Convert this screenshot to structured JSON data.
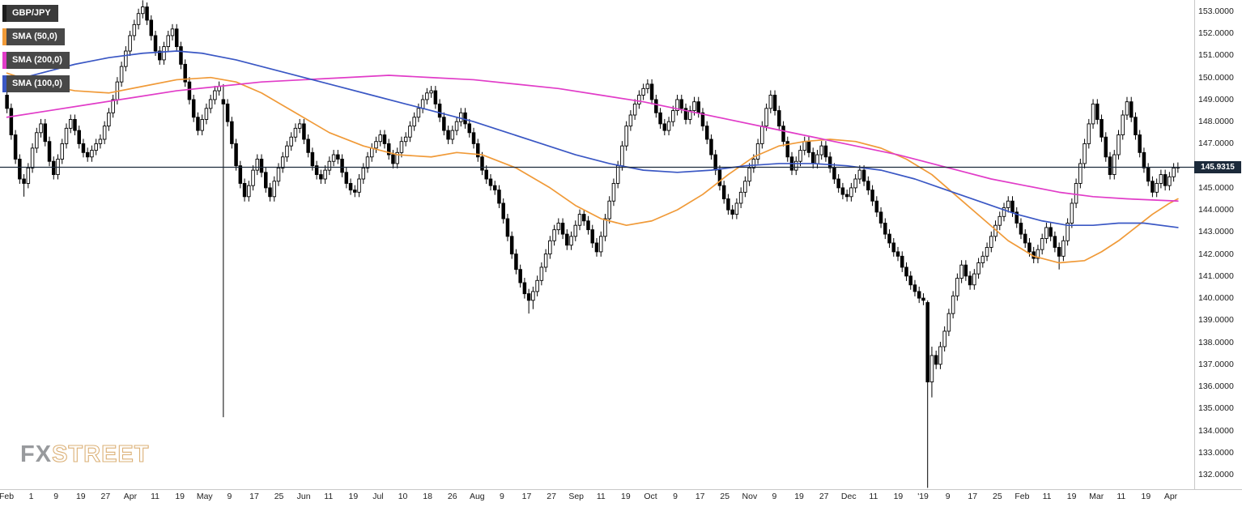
{
  "legend": {
    "symbol": "GBP/JPY",
    "sma50": "SMA (50,0)",
    "sma200": "SMA (200,0)",
    "sma100": "SMA (100,0)"
  },
  "colors": {
    "sma50": "#f09a38",
    "sma200": "#e13cc8",
    "sma100": "#3a57c4",
    "candle": "#000000",
    "price_line": "#1c2a3a",
    "badge_bg": "#1c2a3a",
    "axis_text": "#1a1a1a"
  },
  "watermark": {
    "fx": "FX",
    "street": "STREET"
  },
  "price_badge": "145.9315",
  "chart_data": {
    "type": "candlestick",
    "symbol": "GBP/JPY",
    "timeframe_note": "Feb 2018 - Apr 2019, daily candles",
    "grid": false,
    "legend_position": "top-left",
    "legend": [
      "GBP/JPY",
      "SMA (50,0)",
      "SMA (200,0)",
      "SMA (100,0)"
    ],
    "current_price": 145.9315,
    "y_axis": {
      "min": 132,
      "max": 153,
      "tick_step": 1,
      "labels": [
        "153.0000",
        "152.0000",
        "151.0000",
        "150.0000",
        "149.0000",
        "148.0000",
        "147.0000",
        "146.0000",
        "145.0000",
        "144.0000",
        "143.0000",
        "142.0000",
        "141.0000",
        "140.0000",
        "139.0000",
        "138.0000",
        "137.0000",
        "136.0000",
        "135.0000",
        "134.0000",
        "133.0000",
        "132.0000"
      ]
    },
    "x_labels": [
      "Feb",
      "1",
      "9",
      "19",
      "27",
      "Apr",
      "11",
      "19",
      "May",
      "9",
      "17",
      "25",
      "Jun",
      "11",
      "19",
      "Jul",
      "10",
      "18",
      "26",
      "Aug",
      "9",
      "17",
      "27",
      "Sep",
      "11",
      "19",
      "Oct",
      "9",
      "17",
      "25",
      "Nov",
      "9",
      "19",
      "27",
      "Dec",
      "11",
      "19",
      "'19",
      "9",
      "17",
      "25",
      "Feb",
      "11",
      "19",
      "Mar",
      "11",
      "19",
      "Apr"
    ],
    "first_open": 149.2,
    "wick": 0.22,
    "closes": [
      148.6,
      147.4,
      146.3,
      145.4,
      145.2,
      145.9,
      146.8,
      147.5,
      147.9,
      147.1,
      146.2,
      145.6,
      146.3,
      147.0,
      147.7,
      148.1,
      147.6,
      147.0,
      146.6,
      146.4,
      146.7,
      147.0,
      147.2,
      147.8,
      148.4,
      149.0,
      149.8,
      150.5,
      151.2,
      151.9,
      152.4,
      152.9,
      153.2,
      152.6,
      151.9,
      151.2,
      150.8,
      151.4,
      151.9,
      152.2,
      151.4,
      150.6,
      149.8,
      149.0,
      148.2,
      147.6,
      148.1,
      148.6,
      149.0,
      149.4,
      149.6,
      148.8,
      148.0,
      147.0,
      146.0,
      145.2,
      144.6,
      145.1,
      145.8,
      146.3,
      145.7,
      145.0,
      144.6,
      145.3,
      145.9,
      146.4,
      146.9,
      147.3,
      147.7,
      147.9,
      147.2,
      146.6,
      146.0,
      145.6,
      145.4,
      145.8,
      146.2,
      146.5,
      146.3,
      145.7,
      145.2,
      144.9,
      144.8,
      145.4,
      145.9,
      146.4,
      146.8,
      147.1,
      147.4,
      147.0,
      146.5,
      146.1,
      146.6,
      147.1,
      147.3,
      147.8,
      148.2,
      148.6,
      149.0,
      149.3,
      149.4,
      148.8,
      148.2,
      147.6,
      147.2,
      147.6,
      148.0,
      148.4,
      147.9,
      147.5,
      147.0,
      146.4,
      145.8,
      145.4,
      145.1,
      144.9,
      144.3,
      143.6,
      142.8,
      142.0,
      141.3,
      140.7,
      140.2,
      139.9,
      140.3,
      140.8,
      141.4,
      142.0,
      142.6,
      143.1,
      143.4,
      142.9,
      142.4,
      142.8,
      143.3,
      143.8,
      143.5,
      143.1,
      142.5,
      142.1,
      142.8,
      143.6,
      144.4,
      145.2,
      146.0,
      146.9,
      147.8,
      148.3,
      148.8,
      149.2,
      149.5,
      149.7,
      149.0,
      148.4,
      147.9,
      147.6,
      148.0,
      148.5,
      149.0,
      148.6,
      148.1,
      148.5,
      148.9,
      148.4,
      147.8,
      147.2,
      146.5,
      145.8,
      145.1,
      144.5,
      144.0,
      143.8,
      144.3,
      144.8,
      145.3,
      145.9,
      146.3,
      147.0,
      147.8,
      148.6,
      149.2,
      148.5,
      147.8,
      147.1,
      146.4,
      145.8,
      146.2,
      146.7,
      147.1,
      146.6,
      146.1,
      146.5,
      146.9,
      146.4,
      145.9,
      145.4,
      145.0,
      144.7,
      144.6,
      145.0,
      145.4,
      145.8,
      145.3,
      144.9,
      144.4,
      143.9,
      143.4,
      142.9,
      142.5,
      142.1,
      141.9,
      141.4,
      141.0,
      140.6,
      140.3,
      140.0,
      139.9,
      136.2,
      137.4,
      137.0,
      137.8,
      138.5,
      139.3,
      140.1,
      140.9,
      141.5,
      141.0,
      140.6,
      141.1,
      141.6,
      141.9,
      142.3,
      142.8,
      143.3,
      143.7,
      144.1,
      144.4,
      143.9,
      143.4,
      142.9,
      142.5,
      142.1,
      141.8,
      142.2,
      142.7,
      143.2,
      142.8,
      142.3,
      141.9,
      142.6,
      143.4,
      144.3,
      145.2,
      146.1,
      147.0,
      147.9,
      148.8,
      148.1,
      147.3,
      146.4,
      145.6,
      146.5,
      147.4,
      148.3,
      148.9,
      148.2,
      147.4,
      146.6,
      145.9,
      145.3,
      144.8,
      145.2,
      145.6,
      145.1,
      145.5,
      145.9,
      145.93
    ],
    "candle_overrides": [
      {
        "i": 4,
        "l": 144.6
      },
      {
        "i": 32,
        "h": 153.5
      },
      {
        "i": 33,
        "h": 153.4
      },
      {
        "i": 51,
        "o": 149.0,
        "h": 149.7,
        "l": 134.6,
        "c": 148.8
      },
      {
        "i": 123,
        "l": 139.3
      },
      {
        "i": 124,
        "l": 139.5
      },
      {
        "i": 217,
        "o": 139.8,
        "h": 139.9,
        "l": 131.4,
        "c": 136.2
      },
      {
        "i": 218,
        "o": 136.2,
        "h": 137.8,
        "l": 135.5,
        "c": 137.4
      },
      {
        "i": 248,
        "l": 141.3
      }
    ],
    "series": [
      {
        "name": "SMA (50,0)",
        "color_key": "sma50",
        "data_name": "sma-50-line",
        "points": [
          [
            0,
            150.2
          ],
          [
            8,
            149.7
          ],
          [
            16,
            149.4
          ],
          [
            24,
            149.3
          ],
          [
            32,
            149.6
          ],
          [
            40,
            149.9
          ],
          [
            48,
            150.0
          ],
          [
            54,
            149.8
          ],
          [
            60,
            149.3
          ],
          [
            68,
            148.4
          ],
          [
            76,
            147.5
          ],
          [
            84,
            146.9
          ],
          [
            92,
            146.5
          ],
          [
            100,
            146.4
          ],
          [
            106,
            146.6
          ],
          [
            112,
            146.5
          ],
          [
            120,
            145.9
          ],
          [
            128,
            145.0
          ],
          [
            134,
            144.2
          ],
          [
            140,
            143.6
          ],
          [
            146,
            143.3
          ],
          [
            152,
            143.5
          ],
          [
            158,
            144.0
          ],
          [
            164,
            144.7
          ],
          [
            170,
            145.6
          ],
          [
            176,
            146.4
          ],
          [
            182,
            146.9
          ],
          [
            188,
            147.1
          ],
          [
            194,
            147.2
          ],
          [
            200,
            147.1
          ],
          [
            206,
            146.8
          ],
          [
            212,
            146.3
          ],
          [
            218,
            145.6
          ],
          [
            224,
            144.6
          ],
          [
            230,
            143.6
          ],
          [
            236,
            142.6
          ],
          [
            242,
            141.9
          ],
          [
            248,
            141.6
          ],
          [
            254,
            141.7
          ],
          [
            258,
            142.1
          ],
          [
            262,
            142.6
          ],
          [
            266,
            143.2
          ],
          [
            270,
            143.8
          ],
          [
            274,
            144.3
          ],
          [
            276,
            144.5
          ]
        ]
      },
      {
        "name": "SMA (200,0)",
        "color_key": "sma200",
        "data_name": "sma-200-line",
        "points": [
          [
            0,
            148.2
          ],
          [
            10,
            148.5
          ],
          [
            20,
            148.8
          ],
          [
            30,
            149.1
          ],
          [
            40,
            149.4
          ],
          [
            50,
            149.6
          ],
          [
            60,
            149.8
          ],
          [
            70,
            149.9
          ],
          [
            80,
            150.0
          ],
          [
            90,
            150.1
          ],
          [
            100,
            150.0
          ],
          [
            110,
            149.9
          ],
          [
            120,
            149.7
          ],
          [
            130,
            149.5
          ],
          [
            140,
            149.2
          ],
          [
            150,
            148.9
          ],
          [
            160,
            148.5
          ],
          [
            170,
            148.1
          ],
          [
            180,
            147.7
          ],
          [
            190,
            147.3
          ],
          [
            200,
            146.9
          ],
          [
            210,
            146.5
          ],
          [
            216,
            146.2
          ],
          [
            224,
            145.8
          ],
          [
            232,
            145.4
          ],
          [
            240,
            145.1
          ],
          [
            248,
            144.8
          ],
          [
            256,
            144.6
          ],
          [
            264,
            144.5
          ],
          [
            276,
            144.4
          ]
        ]
      },
      {
        "name": "SMA (100,0)",
        "color_key": "sma100",
        "data_name": "sma-100-line",
        "points": [
          [
            0,
            149.8
          ],
          [
            8,
            150.2
          ],
          [
            16,
            150.6
          ],
          [
            24,
            150.9
          ],
          [
            32,
            151.1
          ],
          [
            40,
            151.2
          ],
          [
            46,
            151.1
          ],
          [
            54,
            150.8
          ],
          [
            62,
            150.4
          ],
          [
            70,
            150.0
          ],
          [
            78,
            149.6
          ],
          [
            86,
            149.2
          ],
          [
            94,
            148.8
          ],
          [
            102,
            148.4
          ],
          [
            110,
            148.0
          ],
          [
            118,
            147.5
          ],
          [
            126,
            147.0
          ],
          [
            134,
            146.5
          ],
          [
            142,
            146.1
          ],
          [
            150,
            145.8
          ],
          [
            158,
            145.7
          ],
          [
            166,
            145.8
          ],
          [
            174,
            146.0
          ],
          [
            182,
            146.1
          ],
          [
            190,
            146.1
          ],
          [
            198,
            146.0
          ],
          [
            206,
            145.8
          ],
          [
            214,
            145.4
          ],
          [
            220,
            145.0
          ],
          [
            226,
            144.6
          ],
          [
            232,
            144.2
          ],
          [
            238,
            143.8
          ],
          [
            244,
            143.5
          ],
          [
            250,
            143.3
          ],
          [
            256,
            143.3
          ],
          [
            262,
            143.4
          ],
          [
            268,
            143.4
          ],
          [
            276,
            143.2
          ]
        ]
      }
    ]
  }
}
